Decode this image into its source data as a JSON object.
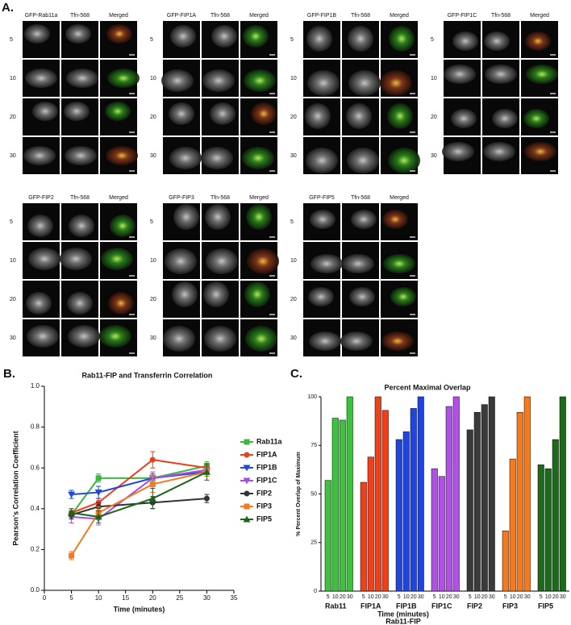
{
  "panel_labels": [
    "A.",
    "B.",
    "C."
  ],
  "panel_a": {
    "groups": [
      {
        "columns": [
          "GFP-Rab11a",
          "Tfn-568",
          "Merged"
        ],
        "rows": [
          "5",
          "10",
          "20",
          "30"
        ]
      },
      {
        "columns": [
          "GFP-FIP1A",
          "Tfn-568",
          "Merged"
        ],
        "rows": [
          "5",
          "10",
          "20",
          "30"
        ]
      },
      {
        "columns": [
          "GFP-FIP1B",
          "Tfn-568",
          "Merged"
        ],
        "rows": [
          "5",
          "10",
          "20",
          "30"
        ]
      },
      {
        "columns": [
          "GFP-FIP1C",
          "Tfn-568",
          "Merged"
        ],
        "rows": [
          "5",
          "10",
          "20",
          "30"
        ]
      },
      {
        "columns": [
          "GFP-FIP2",
          "Tfn-568",
          "Merged"
        ],
        "rows": [
          "5",
          "10",
          "20",
          "30"
        ]
      },
      {
        "columns": [
          "GFP-FIP3",
          "Tfn-568",
          "Merged"
        ],
        "rows": [
          "5",
          "10",
          "20",
          "30"
        ]
      },
      {
        "columns": [
          "GFP-FIP5",
          "Tfn-568",
          "Merged"
        ],
        "rows": [
          "5",
          "10",
          "20",
          "30"
        ]
      }
    ]
  },
  "chart_data": [
    {
      "type": "line",
      "title": "Rab11-FIP and Transferrin Correlation",
      "x_label": "Time (minutes)",
      "y_label": "Pearson's Correlation Coefficient",
      "x": [
        5,
        10,
        20,
        30
      ],
      "xlim": [
        0,
        35
      ],
      "xticks": [
        0,
        5,
        10,
        15,
        20,
        25,
        30,
        35
      ],
      "ylim": [
        0,
        1
      ],
      "yticks": [
        {
          "value": 0,
          "label": "0.0"
        },
        0.2,
        0.4,
        0.6,
        0.8,
        {
          "value": 1,
          "label": "1.0"
        }
      ],
      "series": [
        {
          "name": "Rab11a",
          "color": "#3cb83c",
          "marker": "square",
          "values": [
            0.37,
            0.55,
            0.55,
            0.61
          ],
          "errors": [
            0.02,
            0.02,
            0.02,
            0.02
          ]
        },
        {
          "name": "FIP1A",
          "color": "#ee3f1c",
          "marker": "circle",
          "values": [
            0.38,
            0.43,
            0.64,
            0.6
          ],
          "errors": [
            0.02,
            0.02,
            0.04,
            0.02
          ]
        },
        {
          "name": "FIP1B",
          "color": "#2347dc",
          "marker": "triangle-down",
          "values": [
            0.47,
            0.48,
            0.55,
            0.58
          ],
          "errors": [
            0.02,
            0.03,
            0.02,
            0.02
          ]
        },
        {
          "name": "FIP1C",
          "color": "#a94de6",
          "marker": "triangle-down",
          "values": [
            0.36,
            0.35,
            0.55,
            0.59
          ],
          "errors": [
            0.03,
            0.03,
            0.03,
            0.02
          ]
        },
        {
          "name": "FIP2",
          "color": "#333333",
          "marker": "circle",
          "values": [
            0.37,
            0.41,
            0.43,
            0.45
          ],
          "errors": [
            0.02,
            0.02,
            0.03,
            0.02
          ]
        },
        {
          "name": "FIP3",
          "color": "#f47a1f",
          "marker": "square",
          "values": [
            0.17,
            0.38,
            0.52,
            0.58
          ],
          "errors": [
            0.02,
            0.03,
            0.04,
            0.02
          ]
        },
        {
          "name": "FIP5",
          "color": "#1b661b",
          "marker": "triangle-up",
          "values": [
            0.38,
            0.36,
            0.45,
            0.58
          ],
          "errors": [
            0.02,
            0.03,
            0.05,
            0.04
          ]
        }
      ]
    },
    {
      "type": "grouped-bar",
      "title": "Percent Maximal Overlap",
      "y_label": "% Percent Overlap of Maximum",
      "x_label": "Time (minutes)",
      "x_sublabel": "Rab11-FIP",
      "categories": [
        "5",
        "10",
        "20",
        "30"
      ],
      "ylim": [
        0,
        100
      ],
      "yticks": [
        0,
        25,
        50,
        75,
        100
      ],
      "series": [
        {
          "name": "Rab11",
          "color": "#3ec23e",
          "values": [
            57,
            89,
            88,
            100
          ]
        },
        {
          "name": "FIP1A",
          "color": "#f0401a",
          "values": [
            56,
            69,
            100,
            93
          ]
        },
        {
          "name": "FIP1B",
          "color": "#1f45e0",
          "values": [
            78,
            82,
            94,
            100
          ]
        },
        {
          "name": "FIP1C",
          "color": "#b050e8",
          "values": [
            63,
            59,
            95,
            100
          ]
        },
        {
          "name": "FIP2",
          "color": "#3a3a3a",
          "values": [
            83,
            92,
            96,
            100
          ]
        },
        {
          "name": "FIP3",
          "color": "#f57a1e",
          "values": [
            31,
            68,
            92,
            100
          ]
        },
        {
          "name": "FIP5",
          "color": "#1b6b1b",
          "values": [
            65,
            63,
            78,
            100
          ]
        }
      ]
    }
  ]
}
